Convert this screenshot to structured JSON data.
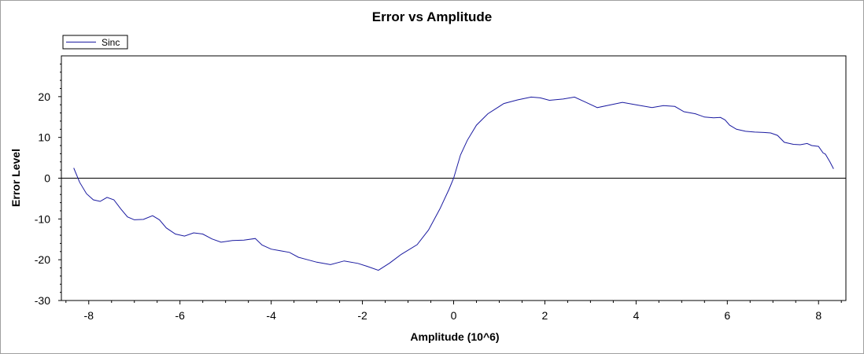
{
  "chart_data": {
    "type": "line",
    "title": "Error vs Amplitude",
    "xlabel": "Amplitude (10^6)",
    "ylabel": "Error Level",
    "xlim": [
      -8.6,
      8.6
    ],
    "ylim": [
      -30,
      30
    ],
    "x_ticks": [
      -8,
      -6,
      -4,
      -2,
      0,
      2,
      4,
      6,
      8
    ],
    "y_ticks": [
      -30,
      -20,
      -10,
      0,
      10,
      20
    ],
    "grid": false,
    "zero_line": true,
    "legend": "top-left",
    "series": [
      {
        "name": "Sinc",
        "color": "#1a1aa0",
        "x": [
          -8.33,
          -8.2,
          -8.05,
          -7.9,
          -7.75,
          -7.6,
          -7.45,
          -7.3,
          -7.15,
          -7.0,
          -6.8,
          -6.6,
          -6.45,
          -6.3,
          -6.1,
          -5.9,
          -5.7,
          -5.5,
          -5.3,
          -5.1,
          -4.85,
          -4.6,
          -4.35,
          -4.2,
          -4.0,
          -3.8,
          -3.6,
          -3.4,
          -3.2,
          -3.0,
          -2.7,
          -2.4,
          -2.1,
          -1.9,
          -1.65,
          -1.4,
          -1.15,
          -0.8,
          -0.55,
          -0.3,
          -0.1,
          0.0,
          0.15,
          0.3,
          0.5,
          0.75,
          1.1,
          1.4,
          1.7,
          1.9,
          2.1,
          2.4,
          2.65,
          2.9,
          3.15,
          3.4,
          3.7,
          4.0,
          4.35,
          4.6,
          4.85,
          5.05,
          5.3,
          5.5,
          5.7,
          5.85,
          5.95,
          6.05,
          6.2,
          6.4,
          6.6,
          6.8,
          6.95,
          7.1,
          7.25,
          7.45,
          7.6,
          7.75,
          7.85,
          8.0,
          8.1,
          8.15,
          8.25,
          8.33
        ],
        "values": [
          2.5,
          -1.0,
          -3.8,
          -5.3,
          -5.7,
          -4.7,
          -5.3,
          -7.5,
          -9.5,
          -10.2,
          -10.1,
          -9.2,
          -10.2,
          -12.2,
          -13.7,
          -14.2,
          -13.4,
          -13.7,
          -14.9,
          -15.7,
          -15.3,
          -15.2,
          -14.8,
          -16.4,
          -17.4,
          -17.8,
          -18.2,
          -19.4,
          -20.0,
          -20.6,
          -21.2,
          -20.3,
          -20.9,
          -21.6,
          -22.6,
          -20.8,
          -18.7,
          -16.3,
          -12.7,
          -7.5,
          -2.7,
          0.0,
          5.7,
          9.3,
          13.0,
          15.8,
          18.3,
          19.2,
          19.9,
          19.7,
          19.1,
          19.4,
          19.9,
          18.6,
          17.3,
          17.9,
          18.6,
          18.0,
          17.3,
          17.8,
          17.6,
          16.3,
          15.8,
          15.0,
          14.8,
          14.9,
          14.3,
          13.0,
          12.0,
          11.5,
          11.3,
          11.2,
          11.1,
          10.5,
          8.8,
          8.3,
          8.2,
          8.5,
          8.0,
          7.8,
          6.2,
          5.9,
          4.0,
          2.3
        ]
      }
    ]
  }
}
